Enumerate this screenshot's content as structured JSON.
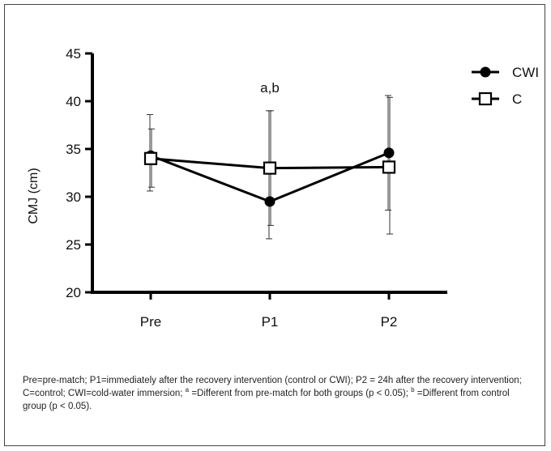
{
  "chart_data": {
    "type": "line",
    "title": "",
    "annotation": "a,b",
    "xlabel": "",
    "ylabel": "CMJ (cm)",
    "categories": [
      "Pre",
      "P1",
      "P2"
    ],
    "ylim": [
      20,
      45
    ],
    "yticks": [
      20,
      25,
      30,
      35,
      40,
      45
    ],
    "legend_position": "top-right",
    "series": [
      {
        "name": "CWI",
        "marker": "filled-circle",
        "color": "#000000",
        "values": [
          34.3,
          29.5,
          34.6
        ],
        "error_low": [
          30.6,
          25.6,
          28.6
        ],
        "error_high": [
          38.6,
          39.0,
          40.6
        ]
      },
      {
        "name": "C",
        "marker": "open-square",
        "color": "#000000",
        "values": [
          34.0,
          33.0,
          33.1
        ],
        "error_low": [
          31.0,
          27.0,
          26.1
        ],
        "error_high": [
          37.1,
          39.0,
          40.4
        ]
      }
    ]
  },
  "caption": {
    "part1": "Pre=pre-match; P1=immediately after the recovery intervention (control or CWI); P2 = 24h after the recovery intervention; C=control; CWI=cold-water immersion; ",
    "sup_a": "a",
    "part2": " =Different from pre-match for both groups (p < 0.05); ",
    "sup_b": "b",
    "part3": " =Different from control group (p < 0.05)."
  }
}
